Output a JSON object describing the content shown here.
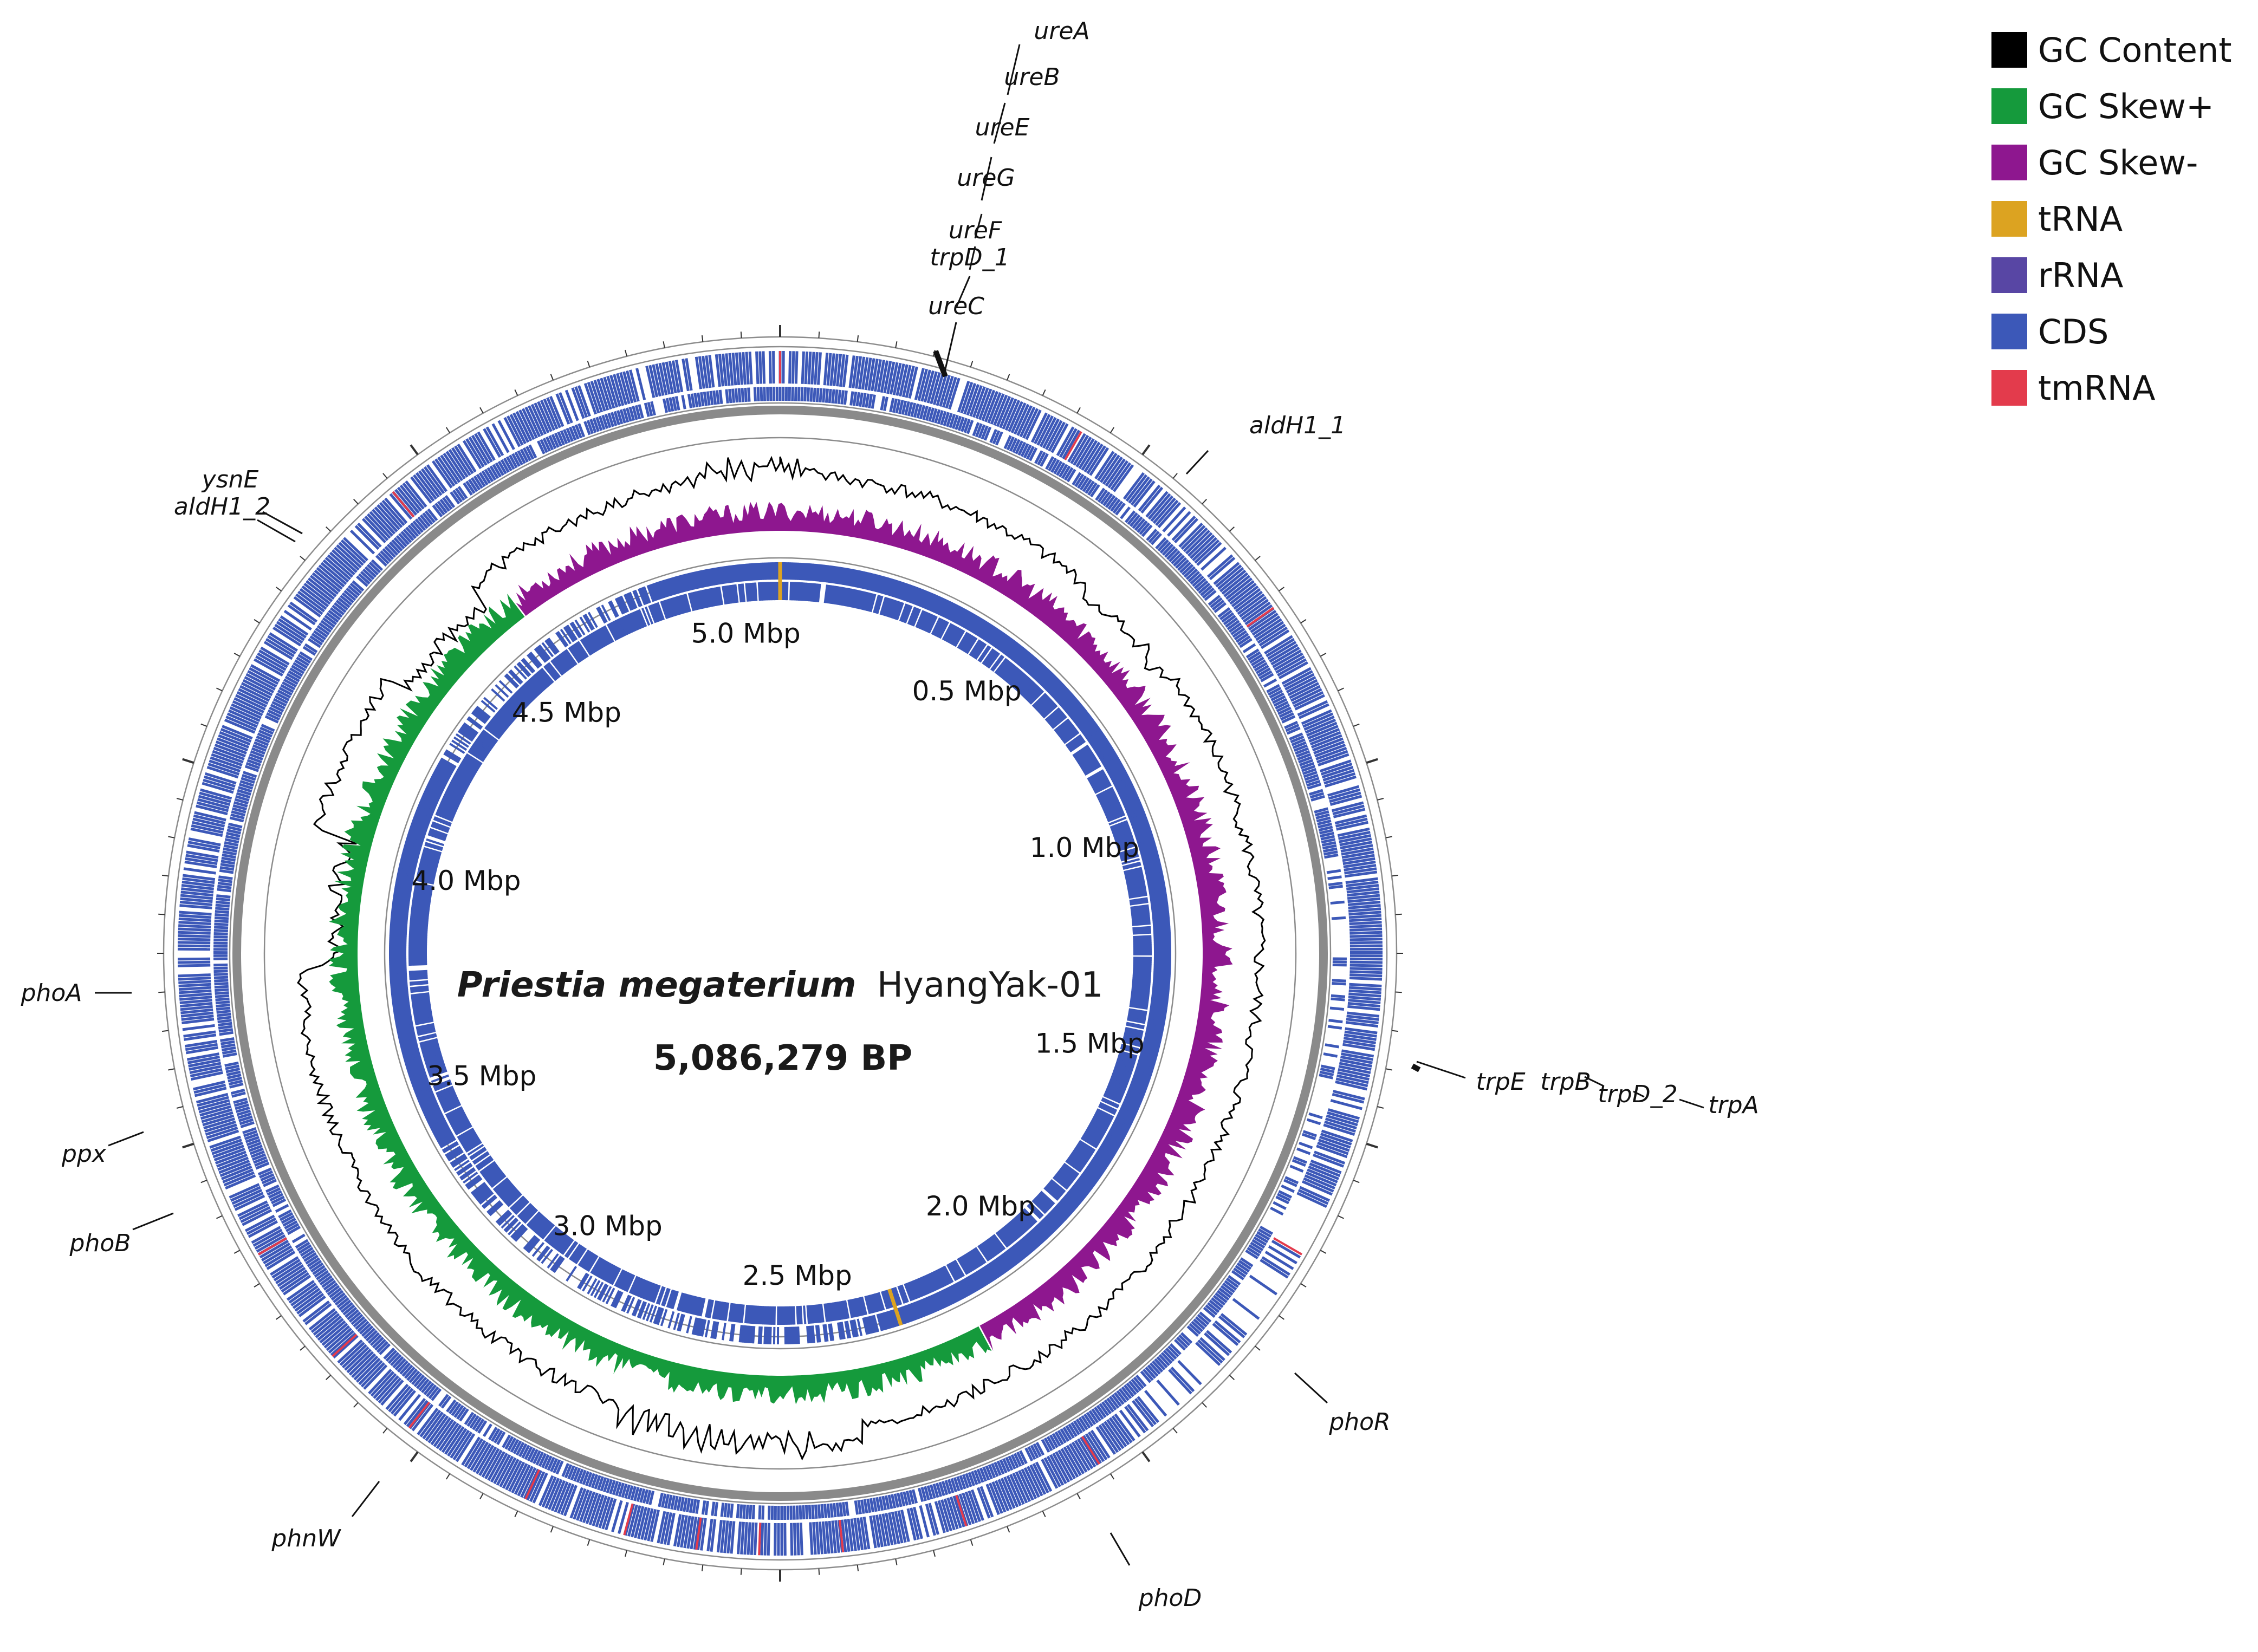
{
  "figure": {
    "title_italic": "Priestia megaterium",
    "title_strain": "HyangYak-01",
    "genome_length": "5,086,279 BP"
  },
  "legend": [
    {
      "label": "GC Content",
      "color": "#000000"
    },
    {
      "label": "GC Skew+",
      "color": "#159a3c"
    },
    {
      "label": "GC Skew-",
      "color": "#8e178f"
    },
    {
      "label": "tRNA",
      "color": "#dca321"
    },
    {
      "label": "rRNA",
      "color": "#5846a4"
    },
    {
      "label": "CDS",
      "color": "#3c58b8"
    },
    {
      "label": "tmRNA",
      "color": "#e33b4c"
    }
  ],
  "position_labels": [
    {
      "text": "5.0 Mbp",
      "mbp": 5.0
    },
    {
      "text": "0.5 Mbp",
      "mbp": 0.5
    },
    {
      "text": "1.0 Mbp",
      "mbp": 1.0
    },
    {
      "text": "1.5 Mbp",
      "mbp": 1.5
    },
    {
      "text": "2.0 Mbp",
      "mbp": 2.0
    },
    {
      "text": "2.5 Mbp",
      "mbp": 2.5
    },
    {
      "text": "3.0 Mbp",
      "mbp": 3.0
    },
    {
      "text": "3.5 Mbp",
      "mbp": 3.5
    },
    {
      "text": "4.0 Mbp",
      "mbp": 4.0
    },
    {
      "text": "4.5 Mbp",
      "mbp": 4.5
    }
  ],
  "genes": [
    {
      "name": "ureA"
    },
    {
      "name": "ureB"
    },
    {
      "name": "ureE"
    },
    {
      "name": "ureG"
    },
    {
      "name": "ureF"
    },
    {
      "name": "trpD_1"
    },
    {
      "name": "ureC"
    },
    {
      "name": "aldH1_1"
    },
    {
      "name": "trpE"
    },
    {
      "name": "trpB"
    },
    {
      "name": "trpD_2"
    },
    {
      "name": "trpA"
    },
    {
      "name": "phoR"
    },
    {
      "name": "phoD"
    },
    {
      "name": "phnW"
    },
    {
      "name": "phoB"
    },
    {
      "name": "ppx"
    },
    {
      "name": "phoA"
    },
    {
      "name": "aldH1_2"
    },
    {
      "name": "ysnE"
    }
  ]
}
